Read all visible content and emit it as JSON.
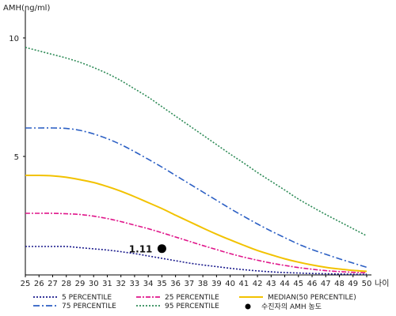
{
  "chart_data": {
    "type": "line",
    "ylabel": "AMH(ng/ml)",
    "xlabel": "나이",
    "xlim": [
      25,
      50
    ],
    "ylim": [
      0,
      11
    ],
    "x_ticks": [
      "25",
      "26",
      "27",
      "28",
      "29",
      "30",
      "31",
      "32",
      "33",
      "34",
      "35",
      "36",
      "37",
      "38",
      "39",
      "40",
      "41",
      "42",
      "43",
      "44",
      "45",
      "46",
      "47",
      "48",
      "49",
      "50"
    ],
    "y_ticks": [
      "5",
      "10"
    ],
    "x": [
      25,
      26,
      27,
      28,
      29,
      30,
      31,
      32,
      33,
      34,
      35,
      36,
      37,
      38,
      39,
      40,
      41,
      42,
      43,
      44,
      45,
      46,
      47,
      48,
      49,
      50
    ],
    "series": [
      {
        "name": "5 PERCENTILE",
        "color": "#1a1a8c",
        "dash": "2,2",
        "values": [
          1.2,
          1.2,
          1.2,
          1.2,
          1.15,
          1.1,
          1.05,
          0.98,
          0.9,
          0.8,
          0.7,
          0.6,
          0.5,
          0.42,
          0.35,
          0.28,
          0.22,
          0.17,
          0.13,
          0.1,
          0.08,
          0.06,
          0.05,
          0.04,
          0.03,
          0.03
        ]
      },
      {
        "name": "25 PERCENTILE",
        "color": "#e0158a",
        "dash": "6,2,2,2",
        "values": [
          2.6,
          2.6,
          2.6,
          2.58,
          2.55,
          2.48,
          2.38,
          2.25,
          2.1,
          1.95,
          1.78,
          1.6,
          1.42,
          1.24,
          1.07,
          0.9,
          0.75,
          0.62,
          0.5,
          0.4,
          0.31,
          0.24,
          0.18,
          0.14,
          0.11,
          0.09
        ]
      },
      {
        "name": "MEDIAN(50 PERCENTILE)",
        "color": "#f2c200",
        "dash": "",
        "values": [
          4.2,
          4.2,
          4.18,
          4.12,
          4.02,
          3.9,
          3.73,
          3.53,
          3.3,
          3.05,
          2.8,
          2.52,
          2.25,
          1.98,
          1.72,
          1.48,
          1.25,
          1.03,
          0.85,
          0.68,
          0.54,
          0.42,
          0.32,
          0.25,
          0.19,
          0.15
        ]
      },
      {
        "name": "75 PERCENTILE",
        "color": "#2b5fc4",
        "dash": "8,3,2,3",
        "values": [
          6.2,
          6.2,
          6.2,
          6.18,
          6.1,
          5.95,
          5.75,
          5.5,
          5.2,
          4.88,
          4.55,
          4.2,
          3.85,
          3.5,
          3.15,
          2.8,
          2.47,
          2.15,
          1.85,
          1.57,
          1.3,
          1.07,
          0.87,
          0.68,
          0.5,
          0.32
        ]
      },
      {
        "name": "95 PERCENTILE",
        "color": "#2e8b57",
        "dash": "2,2",
        "values": [
          9.6,
          9.45,
          9.3,
          9.15,
          8.97,
          8.75,
          8.5,
          8.2,
          7.85,
          7.5,
          7.1,
          6.7,
          6.3,
          5.9,
          5.5,
          5.1,
          4.72,
          4.32,
          3.95,
          3.58,
          3.2,
          2.87,
          2.55,
          2.25,
          1.95,
          1.65
        ]
      }
    ],
    "point": {
      "name": "수진자의 AMH 농도",
      "x": 35,
      "y": 1.11,
      "label": "1.11",
      "color": "#000000"
    },
    "legend_position": "bottom"
  }
}
